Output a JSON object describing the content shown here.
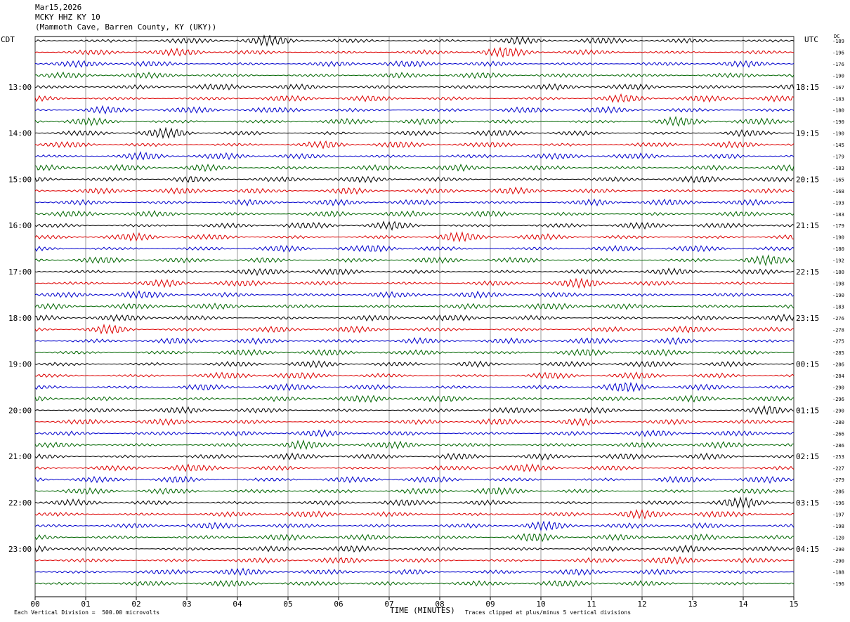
{
  "header": {
    "date": "Mar15,2026",
    "station": "MCKY HHZ KY 10",
    "location": "(Mammoth Cave, Barren County, KY (UKY))"
  },
  "labels": {
    "left_tz": "CDT",
    "right_tz": "UTC",
    "dc_header": "DC",
    "x_axis_title": "TIME (MINUTES)",
    "scale_note": "Each Vertical Division =  500.00 microvolts",
    "clip_note": "Traces clipped at plus/minus 5 vertical divisions"
  },
  "colors": {
    "trace_cycle": [
      "#000000",
      "#dd0000",
      "#0000cc",
      "#006600"
    ],
    "grid": "#555555"
  },
  "chart_data": {
    "type": "line",
    "title": "MCKY HHZ KY 10",
    "xlabel": "TIME (MINUTES)",
    "xlim": [
      0,
      15
    ],
    "x_ticks": [
      "00",
      "01",
      "02",
      "03",
      "04",
      "05",
      "06",
      "07",
      "08",
      "09",
      "10",
      "11",
      "12",
      "13",
      "14",
      "15"
    ],
    "left_hour_labels": [
      "13:00",
      "14:00",
      "15:00",
      "16:00",
      "17:00",
      "18:00",
      "19:00",
      "20:00",
      "21:00",
      "22:00",
      "23:00"
    ],
    "right_hour_labels": [
      "18:15",
      "19:15",
      "20:15",
      "21:15",
      "22:15",
      "23:15",
      "00:15",
      "01:15",
      "02:15",
      "03:15",
      "04:15"
    ],
    "trace_dc_offsets": [
      "-189",
      "-196",
      "-176",
      "-190",
      "-167",
      "-183",
      "-180",
      "-190",
      "-190",
      "-145",
      "-179",
      "-183",
      "-165",
      "-168",
      "-193",
      "-183",
      "-179",
      "-190",
      "-180",
      "-192",
      "-180",
      "-198",
      "-190",
      "-183",
      "-276",
      "-278",
      "-275",
      "-285",
      "-286",
      "-284",
      "-290",
      "-296",
      "-290",
      "-280",
      "-266",
      "-286",
      "-253",
      "-227",
      "-279",
      "-286",
      "-196",
      "-197",
      "-198",
      "-120",
      "-290",
      "-290",
      "-188",
      "-196"
    ]
  }
}
